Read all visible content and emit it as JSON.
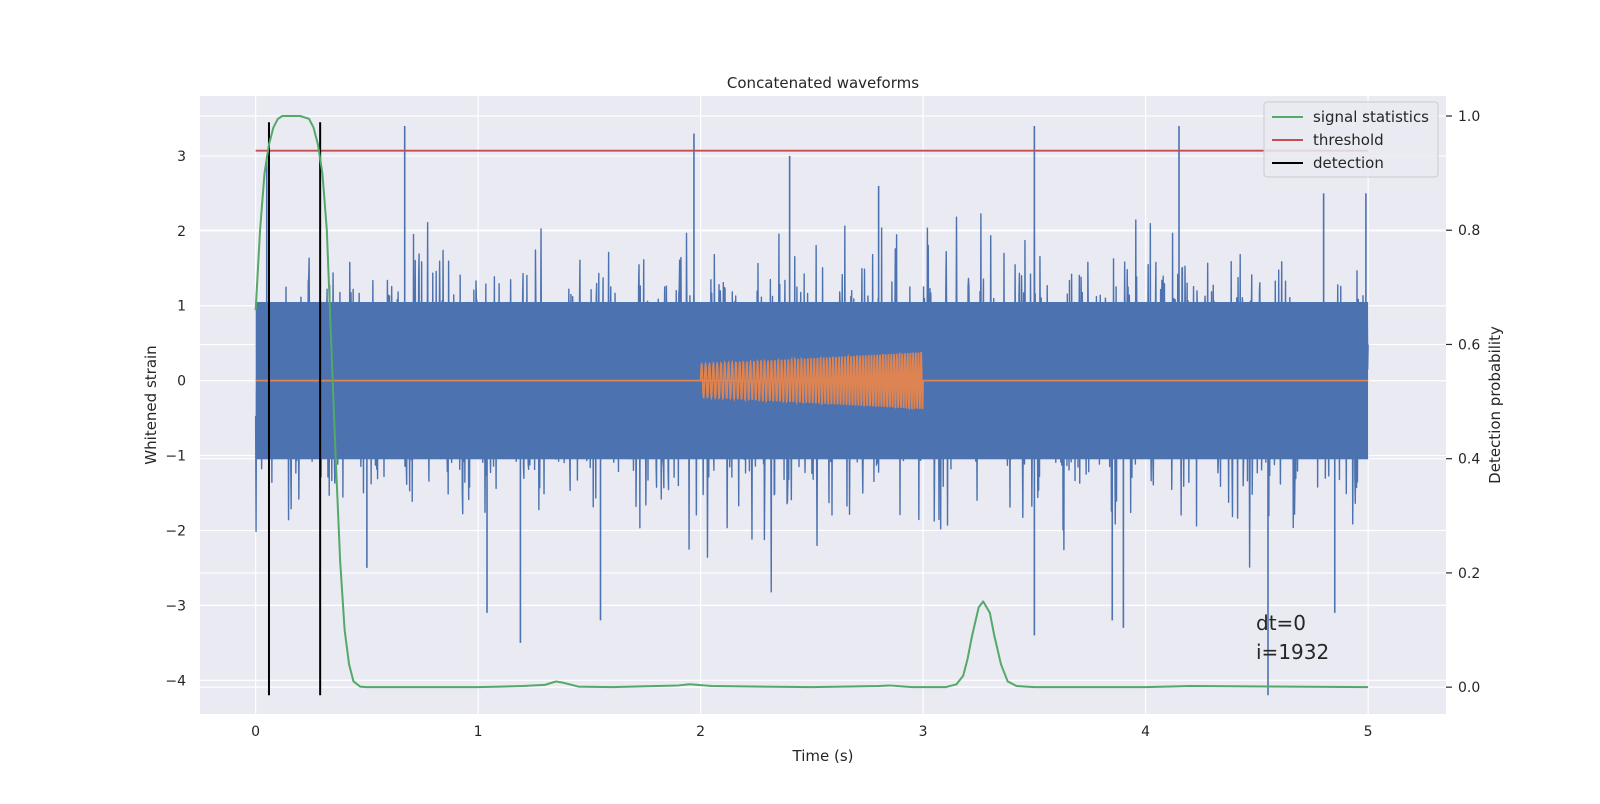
{
  "chart_data": {
    "type": "line",
    "title": "Concatenated waveforms",
    "xlabel": "Time (s)",
    "ylabel": "Whitened strain",
    "y2label": "Detection probability",
    "xlim": [
      -0.25,
      5.35
    ],
    "ylim": [
      -4.45,
      3.8
    ],
    "y2lim": [
      -0.047,
      1.035
    ],
    "xticks": [
      0,
      1,
      2,
      3,
      4,
      5
    ],
    "yticks": [
      -4,
      -3,
      -2,
      -1,
      0,
      1,
      2,
      3
    ],
    "y2ticks": [
      0.0,
      0.2,
      0.4,
      0.6,
      0.8,
      1.0
    ],
    "grid": true,
    "legend_position": "top-right",
    "annotations": [
      "dt=0",
      "i=1932"
    ],
    "colors": {
      "background": "#eaeaf2",
      "strain": "#4c72b0",
      "waveform": "#dd8452",
      "signal_statistics": "#55a868",
      "threshold": "#c44e52",
      "detection": "#000000"
    },
    "series": [
      {
        "name": "",
        "axis": "left",
        "kind": "noise",
        "x_range": [
          0,
          5
        ],
        "sigma": 0.75,
        "core": 1.05,
        "spikes": [
          [
            0.67,
            3.4
          ],
          [
            1.97,
            3.3
          ],
          [
            2.4,
            3.0
          ],
          [
            3.5,
            3.4
          ],
          [
            4.15,
            3.4
          ],
          [
            4.55,
            -4.2
          ],
          [
            1.19,
            -3.5
          ],
          [
            1.55,
            -3.2
          ],
          [
            3.5,
            -3.4
          ],
          [
            3.9,
            -3.3
          ],
          [
            4.85,
            -3.1
          ],
          [
            0.05,
            3.0
          ],
          [
            0.29,
            -1.4
          ],
          [
            1.04,
            -3.1
          ],
          [
            3.85,
            -3.2
          ],
          [
            4.8,
            2.5
          ],
          [
            2.8,
            2.6
          ],
          [
            0.5,
            -2.5
          ],
          [
            4.99,
            2.5
          ]
        ]
      },
      {
        "name": "",
        "axis": "left",
        "kind": "chirp",
        "x_range": [
          2.0,
          3.0
        ],
        "amplitude_start": 0.22,
        "amplitude_end": 0.38,
        "cycles": 56,
        "baseline": 0
      },
      {
        "name": "signal statistics",
        "axis": "right",
        "x": [
          0.0,
          0.02,
          0.04,
          0.06,
          0.08,
          0.1,
          0.12,
          0.15,
          0.2,
          0.24,
          0.26,
          0.28,
          0.3,
          0.32,
          0.34,
          0.36,
          0.38,
          0.4,
          0.42,
          0.44,
          0.47,
          0.5,
          1.0,
          1.1,
          1.2,
          1.3,
          1.35,
          1.38,
          1.45,
          1.6,
          1.9,
          1.95,
          2.05,
          2.5,
          2.8,
          2.85,
          2.95,
          3.1,
          3.15,
          3.18,
          3.2,
          3.22,
          3.25,
          3.27,
          3.3,
          3.32,
          3.35,
          3.38,
          3.42,
          3.5,
          4.0,
          4.2,
          5.0
        ],
        "y": [
          0.66,
          0.8,
          0.9,
          0.95,
          0.98,
          0.995,
          1.0,
          1.0,
          1.0,
          0.995,
          0.98,
          0.95,
          0.9,
          0.8,
          0.6,
          0.4,
          0.22,
          0.1,
          0.04,
          0.01,
          0.001,
          0.0,
          0.0,
          0.001,
          0.002,
          0.004,
          0.01,
          0.008,
          0.001,
          0.0,
          0.003,
          0.005,
          0.002,
          0.0,
          0.002,
          0.003,
          0.0,
          0.0,
          0.005,
          0.02,
          0.05,
          0.09,
          0.14,
          0.15,
          0.13,
          0.09,
          0.04,
          0.01,
          0.002,
          0.0,
          0.0,
          0.002,
          0.0
        ]
      },
      {
        "name": "threshold",
        "axis": "left",
        "x": [
          0,
          5
        ],
        "y": [
          3.07,
          3.07
        ]
      },
      {
        "name": "detection",
        "axis": "left",
        "x": [
          0.06,
          0.29
        ],
        "y_range": [
          -4.2,
          3.45
        ]
      }
    ]
  }
}
